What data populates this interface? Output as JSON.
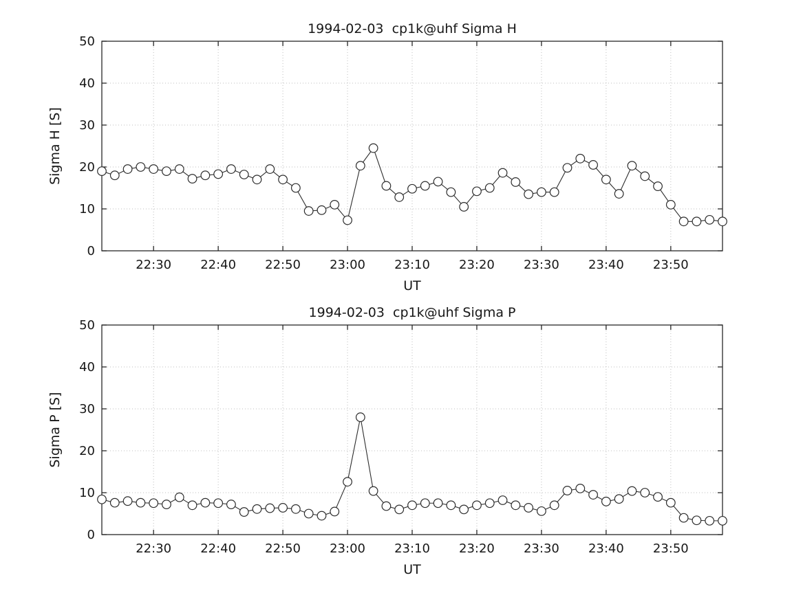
{
  "page": {
    "background": "#ffffff",
    "text_color": "#171717",
    "line_color": "#2b2b2b",
    "grid_color": "#bdbdbd"
  },
  "chart_data": [
    {
      "type": "line",
      "name": "sigma-h-chart",
      "title": "1994-02-03  cp1k@uhf Sigma H",
      "xlabel": "UT",
      "ylabel": "Sigma H [S]",
      "ylim": [
        0,
        50
      ],
      "yticks": [
        0,
        10,
        20,
        30,
        40,
        50
      ],
      "x_range": [
        "22:22",
        "23:58"
      ],
      "xticks": [
        "22:30",
        "22:40",
        "22:50",
        "23:00",
        "23:10",
        "23:20",
        "23:30",
        "23:40",
        "23:50"
      ],
      "grid": true,
      "marker": "o",
      "legend": null,
      "x": [
        "22:22",
        "22:24",
        "22:26",
        "22:28",
        "22:30",
        "22:32",
        "22:34",
        "22:36",
        "22:38",
        "22:40",
        "22:42",
        "22:44",
        "22:46",
        "22:48",
        "22:50",
        "22:52",
        "22:54",
        "22:56",
        "22:58",
        "23:00",
        "23:02",
        "23:04",
        "23:06",
        "23:08",
        "23:10",
        "23:12",
        "23:14",
        "23:16",
        "23:18",
        "23:20",
        "23:22",
        "23:24",
        "23:26",
        "23:28",
        "23:30",
        "23:32",
        "23:34",
        "23:36",
        "23:38",
        "23:40",
        "23:42",
        "23:44",
        "23:46",
        "23:48",
        "23:50",
        "23:52",
        "23:54",
        "23:56",
        "23:58"
      ],
      "values": [
        19,
        18,
        19.5,
        20,
        19.5,
        19,
        19.5,
        17.2,
        18,
        18.3,
        19.5,
        18.2,
        17,
        19.5,
        17,
        15,
        9.5,
        9.7,
        11,
        7.3,
        20.3,
        24.5,
        15.5,
        12.8,
        14.8,
        15.5,
        16.5,
        14,
        10.5,
        14.2,
        15,
        18.6,
        16.4,
        13.5,
        14,
        14,
        19.8,
        22,
        20.5,
        17,
        13.6,
        20.3,
        17.8,
        15.4,
        11,
        7,
        7,
        7.4,
        7
      ]
    },
    {
      "type": "line",
      "name": "sigma-p-chart",
      "title": "1994-02-03  cp1k@uhf Sigma P",
      "xlabel": "UT",
      "ylabel": "Sigma P [S]",
      "ylim": [
        0,
        50
      ],
      "yticks": [
        0,
        10,
        20,
        30,
        40,
        50
      ],
      "x_range": [
        "22:22",
        "23:58"
      ],
      "xticks": [
        "22:30",
        "22:40",
        "22:50",
        "23:00",
        "23:10",
        "23:20",
        "23:30",
        "23:40",
        "23:50"
      ],
      "grid": true,
      "marker": "o",
      "legend": null,
      "x": [
        "22:22",
        "22:24",
        "22:26",
        "22:28",
        "22:30",
        "22:32",
        "22:34",
        "22:36",
        "22:38",
        "22:40",
        "22:42",
        "22:44",
        "22:46",
        "22:48",
        "22:50",
        "22:52",
        "22:54",
        "22:56",
        "22:58",
        "23:00",
        "23:02",
        "23:04",
        "23:06",
        "23:08",
        "23:10",
        "23:12",
        "23:14",
        "23:16",
        "23:18",
        "23:20",
        "23:22",
        "23:24",
        "23:26",
        "23:28",
        "23:30",
        "23:32",
        "23:34",
        "23:36",
        "23:38",
        "23:40",
        "23:42",
        "23:44",
        "23:46",
        "23:48",
        "23:50",
        "23:52",
        "23:54",
        "23:56",
        "23:58"
      ],
      "values": [
        8.4,
        7.6,
        8,
        7.6,
        7.5,
        7.2,
        8.9,
        7,
        7.6,
        7.5,
        7.2,
        5.4,
        6.1,
        6.3,
        6.4,
        6.1,
        5,
        4.5,
        5.5,
        12.6,
        28,
        10.4,
        6.8,
        6,
        7,
        7.5,
        7.5,
        7,
        6,
        7,
        7.5,
        8.2,
        7,
        6.4,
        5.6,
        7,
        10.5,
        11,
        9.5,
        7.9,
        8.5,
        10.4,
        10,
        9,
        7.6,
        4,
        3.4,
        3.3,
        3.3
      ]
    }
  ]
}
